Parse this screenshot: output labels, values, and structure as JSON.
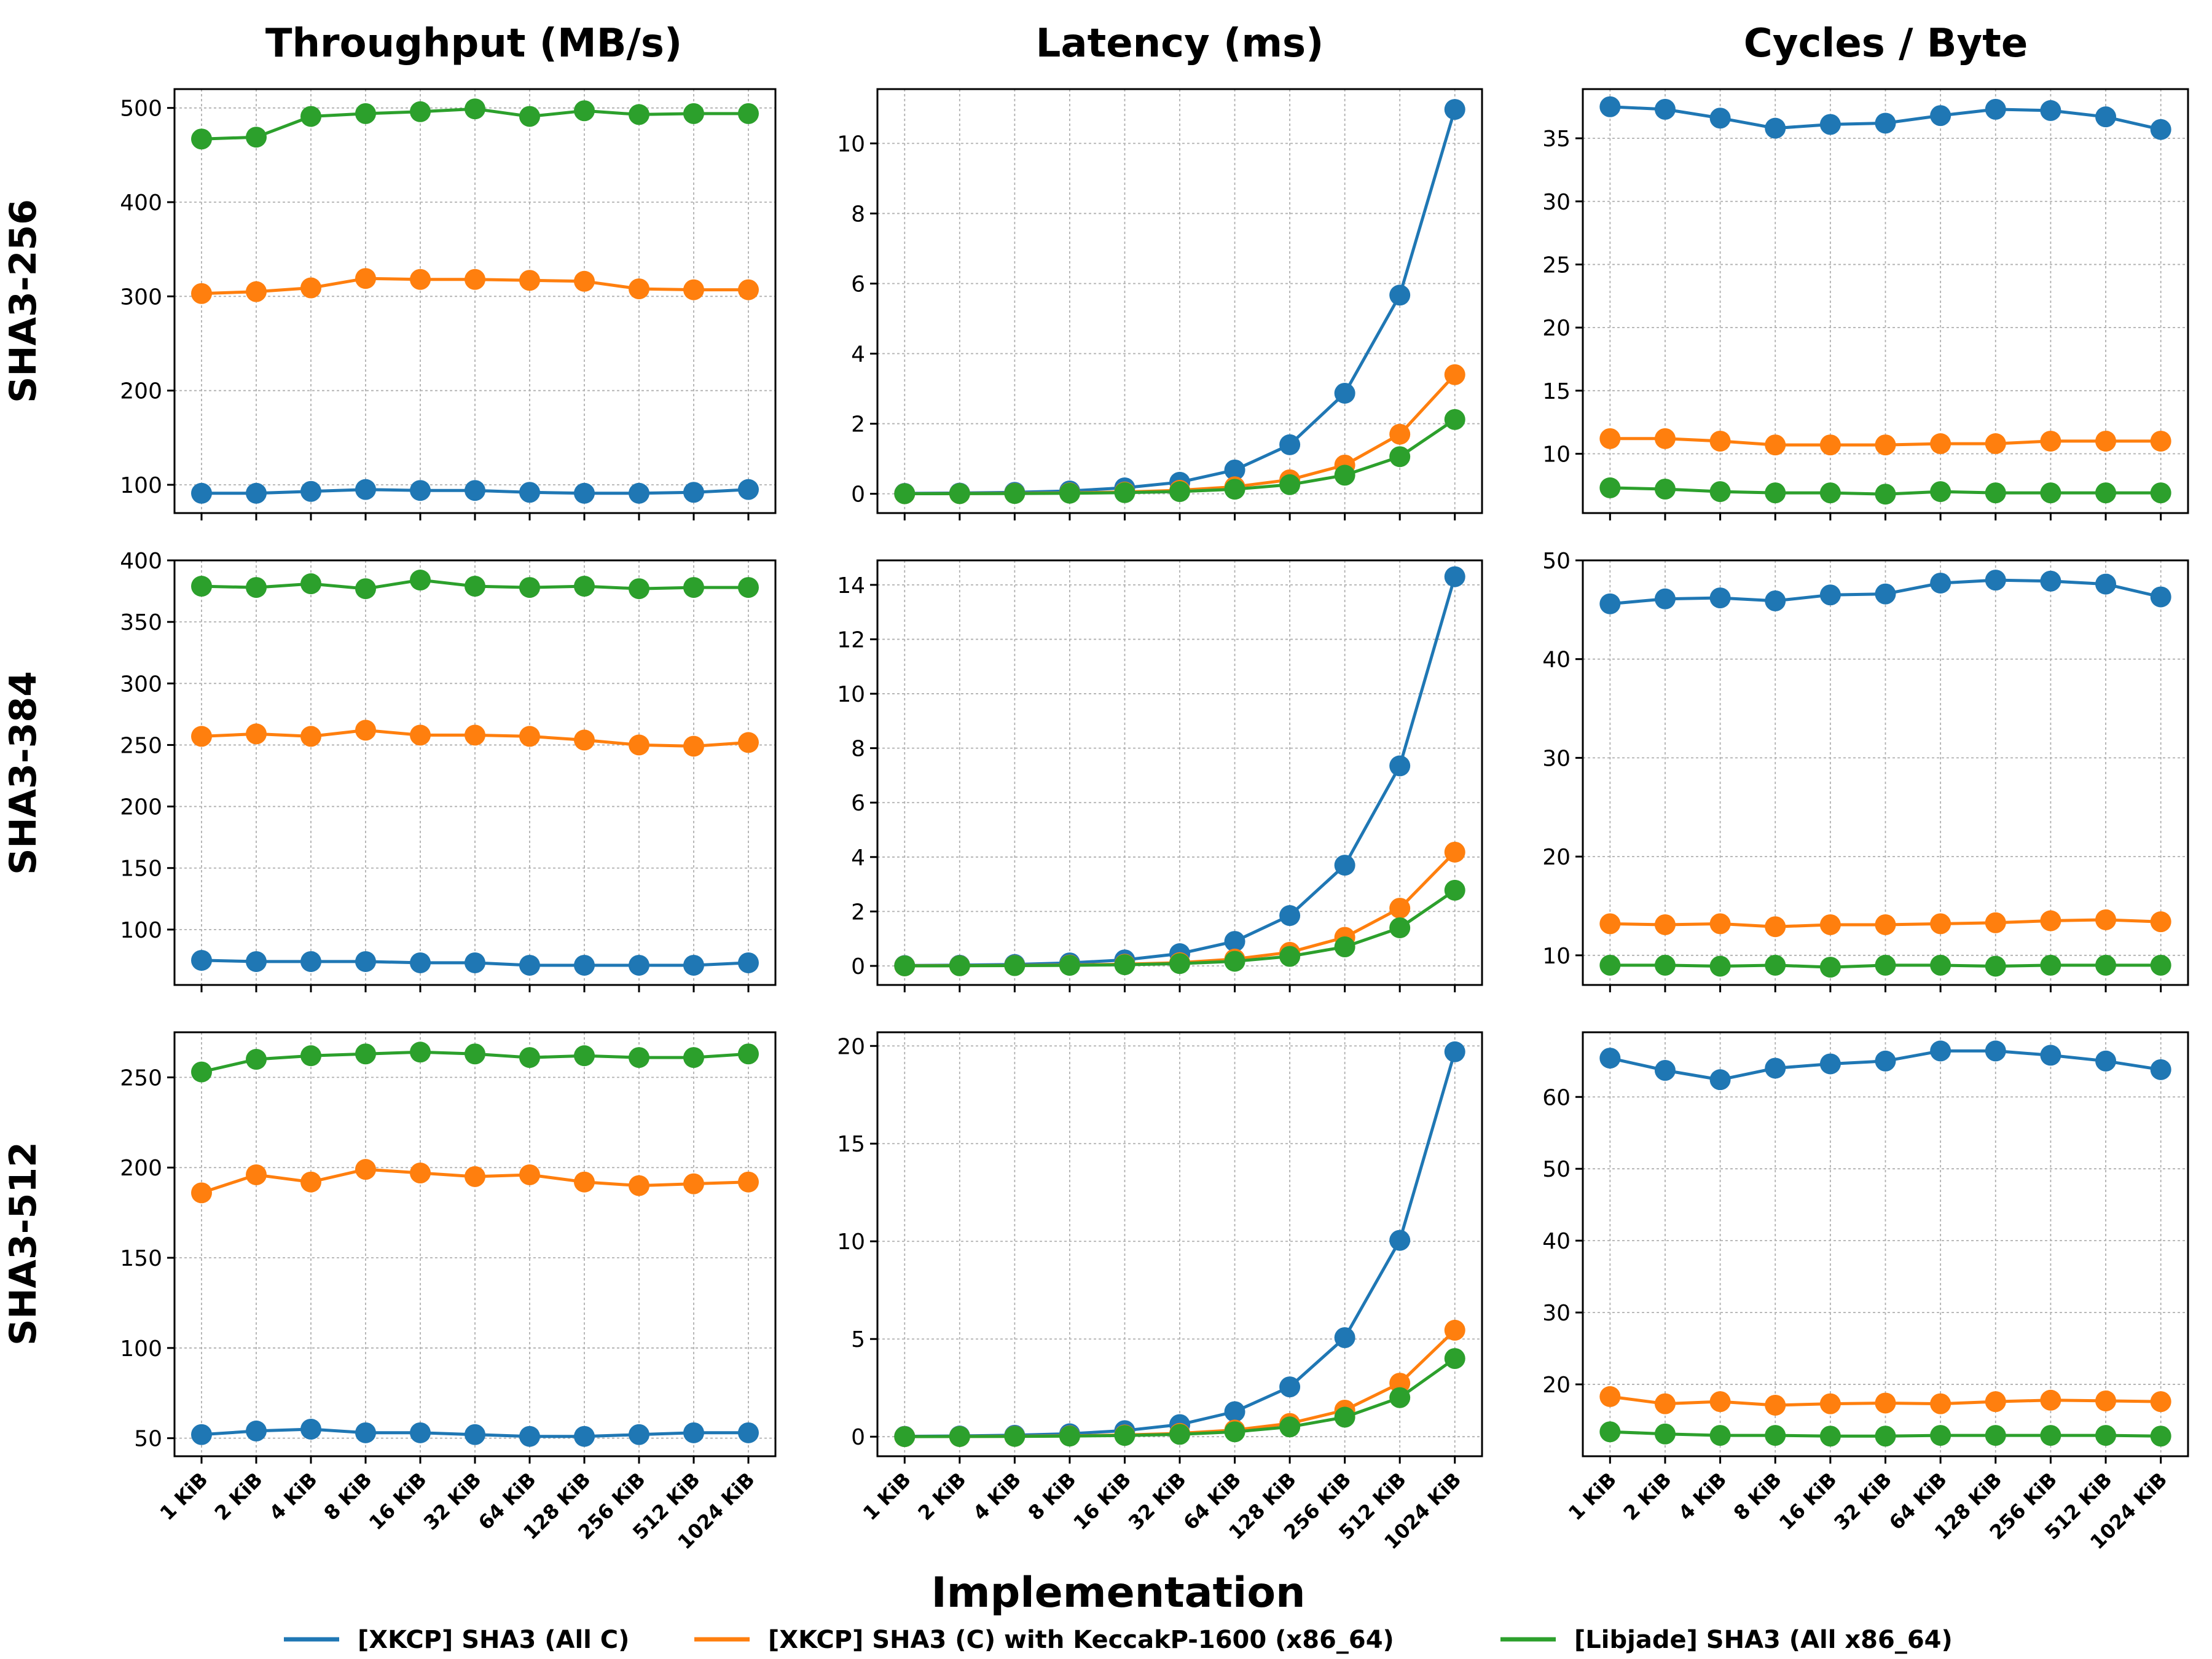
{
  "figure": {
    "xlabel": "Implementation",
    "column_titles": [
      "Throughput (MB/s)",
      "Latency (ms)",
      "Cycles / Byte"
    ],
    "row_labels": [
      "SHA3-256",
      "SHA3-384",
      "SHA3-512"
    ],
    "legend_position": "bottom-center"
  },
  "legend": [
    {
      "label": "[XKCP] SHA3 (All C)",
      "color": "#1f77b4"
    },
    {
      "label": "[XKCP] SHA3 (C) with KeccakP-1600 (x86_64)",
      "color": "#ff7f0e"
    },
    {
      "label": "[Libjade] SHA3 (All x86_64)",
      "color": "#2ca02c"
    }
  ],
  "chart_data": [
    {
      "type": "line",
      "row": "SHA3-256",
      "column": "Throughput (MB/s)",
      "categories": [
        "1 KiB",
        "2 KiB",
        "4 KiB",
        "8 KiB",
        "16 KiB",
        "32 KiB",
        "64 KiB",
        "128 KiB",
        "256 KiB",
        "512 KiB",
        "1024 KiB"
      ],
      "ylim": [
        70,
        520
      ],
      "yticks": [
        100,
        200,
        300,
        400,
        500
      ],
      "grid": true,
      "series": [
        {
          "name": "[XKCP] SHA3 (All C)",
          "values": [
            91,
            91,
            93,
            95,
            94,
            94,
            92,
            91,
            91,
            92,
            95
          ]
        },
        {
          "name": "[XKCP] SHA3 (C) with KeccakP-1600 (x86_64)",
          "values": [
            303,
            305,
            309,
            319,
            318,
            318,
            317,
            316,
            308,
            307,
            307
          ]
        },
        {
          "name": "[Libjade] SHA3 (All x86_64)",
          "values": [
            467,
            469,
            491,
            494,
            496,
            499,
            491,
            497,
            493,
            494,
            494
          ]
        }
      ]
    },
    {
      "type": "line",
      "row": "SHA3-256",
      "column": "Latency (ms)",
      "categories": [
        "1 KiB",
        "2 KiB",
        "4 KiB",
        "8 KiB",
        "16 KiB",
        "32 KiB",
        "64 KiB",
        "128 KiB",
        "256 KiB",
        "512 KiB",
        "1024 KiB"
      ],
      "ylim": [
        -0.55,
        11.55
      ],
      "yticks": [
        0,
        2,
        4,
        6,
        8,
        10
      ],
      "grid": true,
      "series": [
        {
          "name": "[XKCP] SHA3 (All C)",
          "values": [
            0.011,
            0.021,
            0.042,
            0.082,
            0.17,
            0.33,
            0.68,
            1.4,
            2.87,
            5.67,
            10.97
          ]
        },
        {
          "name": "[XKCP] SHA3 (C) with KeccakP-1600 (x86_64)",
          "values": [
            0.003,
            0.006,
            0.013,
            0.026,
            0.05,
            0.1,
            0.2,
            0.4,
            0.82,
            1.7,
            3.4
          ]
        },
        {
          "name": "[Libjade] SHA3 (All x86_64)",
          "values": [
            0.002,
            0.004,
            0.008,
            0.016,
            0.032,
            0.063,
            0.13,
            0.26,
            0.53,
            1.06,
            2.12
          ]
        }
      ]
    },
    {
      "type": "line",
      "row": "SHA3-256",
      "column": "Cycles / Byte",
      "categories": [
        "1 KiB",
        "2 KiB",
        "4 KiB",
        "8 KiB",
        "16 KiB",
        "32 KiB",
        "64 KiB",
        "128 KiB",
        "256 KiB",
        "512 KiB",
        "1024 KiB"
      ],
      "ylim": [
        5.3,
        38.9
      ],
      "yticks": [
        10,
        15,
        20,
        25,
        30,
        35
      ],
      "grid": true,
      "series": [
        {
          "name": "[XKCP] SHA3 (All C)",
          "values": [
            37.5,
            37.3,
            36.6,
            35.8,
            36.1,
            36.2,
            36.8,
            37.3,
            37.2,
            36.7,
            35.7
          ]
        },
        {
          "name": "[XKCP] SHA3 (C) with KeccakP-1600 (x86_64)",
          "values": [
            11.2,
            11.2,
            11.0,
            10.7,
            10.7,
            10.7,
            10.8,
            10.8,
            11.0,
            11.0,
            11.0
          ]
        },
        {
          "name": "[Libjade] SHA3 (All x86_64)",
          "values": [
            7.3,
            7.2,
            7.0,
            6.9,
            6.9,
            6.8,
            7.0,
            6.9,
            6.9,
            6.9,
            6.9
          ]
        }
      ]
    },
    {
      "type": "line",
      "row": "SHA3-384",
      "column": "Throughput (MB/s)",
      "categories": [
        "1 KiB",
        "2 KiB",
        "4 KiB",
        "8 KiB",
        "16 KiB",
        "32 KiB",
        "64 KiB",
        "128 KiB",
        "256 KiB",
        "512 KiB",
        "1024 KiB"
      ],
      "ylim": [
        55,
        400
      ],
      "yticks": [
        100,
        150,
        200,
        250,
        300,
        350,
        400
      ],
      "grid": true,
      "series": [
        {
          "name": "[XKCP] SHA3 (All C)",
          "values": [
            75,
            74,
            74,
            74,
            73,
            73,
            71,
            71,
            71,
            71,
            73
          ]
        },
        {
          "name": "[XKCP] SHA3 (C) with KeccakP-1600 (x86_64)",
          "values": [
            257,
            259,
            257,
            262,
            258,
            258,
            257,
            254,
            250,
            249,
            252
          ]
        },
        {
          "name": "[Libjade] SHA3 (All x86_64)",
          "values": [
            379,
            378,
            381,
            377,
            384,
            379,
            378,
            379,
            377,
            378,
            378
          ]
        }
      ]
    },
    {
      "type": "line",
      "row": "SHA3-384",
      "column": "Latency (ms)",
      "categories": [
        "1 KiB",
        "2 KiB",
        "4 KiB",
        "8 KiB",
        "16 KiB",
        "32 KiB",
        "64 KiB",
        "128 KiB",
        "256 KiB",
        "512 KiB",
        "1024 KiB"
      ],
      "ylim": [
        -0.7,
        14.9
      ],
      "yticks": [
        0,
        2,
        4,
        6,
        8,
        10,
        12,
        14
      ],
      "grid": true,
      "series": [
        {
          "name": "[XKCP] SHA3 (All C)",
          "values": [
            0.013,
            0.026,
            0.053,
            0.11,
            0.22,
            0.45,
            0.9,
            1.85,
            3.7,
            7.35,
            14.3
          ]
        },
        {
          "name": "[XKCP] SHA3 (C) with KeccakP-1600 (x86_64)",
          "values": [
            0.004,
            0.008,
            0.016,
            0.031,
            0.062,
            0.12,
            0.25,
            0.5,
            1.05,
            2.12,
            4.18
          ]
        },
        {
          "name": "[Libjade] SHA3 (All x86_64)",
          "values": [
            0.003,
            0.005,
            0.011,
            0.021,
            0.043,
            0.085,
            0.17,
            0.35,
            0.7,
            1.4,
            2.78
          ]
        }
      ]
    },
    {
      "type": "line",
      "row": "SHA3-384",
      "column": "Cycles / Byte",
      "categories": [
        "1 KiB",
        "2 KiB",
        "4 KiB",
        "8 KiB",
        "16 KiB",
        "32 KiB",
        "64 KiB",
        "128 KiB",
        "256 KiB",
        "512 KiB",
        "1024 KiB"
      ],
      "ylim": [
        7.0,
        50.0
      ],
      "yticks": [
        10,
        20,
        30,
        40,
        50
      ],
      "grid": true,
      "series": [
        {
          "name": "[XKCP] SHA3 (All C)",
          "values": [
            45.6,
            46.1,
            46.2,
            45.9,
            46.5,
            46.6,
            47.7,
            48.0,
            47.9,
            47.6,
            46.3
          ]
        },
        {
          "name": "[XKCP] SHA3 (C) with KeccakP-1600 (x86_64)",
          "values": [
            13.2,
            13.1,
            13.2,
            12.9,
            13.1,
            13.1,
            13.2,
            13.3,
            13.5,
            13.6,
            13.4
          ]
        },
        {
          "name": "[Libjade] SHA3 (All x86_64)",
          "values": [
            9.0,
            9.0,
            8.9,
            9.0,
            8.8,
            9.0,
            9.0,
            8.9,
            9.0,
            9.0,
            9.0
          ]
        }
      ]
    },
    {
      "type": "line",
      "row": "SHA3-512",
      "column": "Throughput (MB/s)",
      "categories": [
        "1 KiB",
        "2 KiB",
        "4 KiB",
        "8 KiB",
        "16 KiB",
        "32 KiB",
        "64 KiB",
        "128 KiB",
        "256 KiB",
        "512 KiB",
        "1024 KiB"
      ],
      "ylim": [
        40,
        275
      ],
      "yticks": [
        50,
        100,
        150,
        200,
        250
      ],
      "grid": true,
      "series": [
        {
          "name": "[XKCP] SHA3 (All C)",
          "values": [
            52,
            54,
            55,
            53,
            53,
            52,
            51,
            51,
            52,
            53,
            53
          ]
        },
        {
          "name": "[XKCP] SHA3 (C) with KeccakP-1600 (x86_64)",
          "values": [
            186,
            196,
            192,
            199,
            197,
            195,
            196,
            192,
            190,
            191,
            192
          ]
        },
        {
          "name": "[Libjade] SHA3 (All x86_64)",
          "values": [
            253,
            260,
            262,
            263,
            264,
            263,
            261,
            262,
            261,
            261,
            263
          ]
        }
      ]
    },
    {
      "type": "line",
      "row": "SHA3-512",
      "column": "Latency (ms)",
      "categories": [
        "1 KiB",
        "2 KiB",
        "4 KiB",
        "8 KiB",
        "16 KiB",
        "32 KiB",
        "64 KiB",
        "128 KiB",
        "256 KiB",
        "512 KiB",
        "1024 KiB"
      ],
      "ylim": [
        -1.0,
        20.7
      ],
      "yticks": [
        0,
        5,
        10,
        15,
        20
      ],
      "grid": true,
      "series": [
        {
          "name": "[XKCP] SHA3 (All C)",
          "values": [
            0.019,
            0.037,
            0.074,
            0.15,
            0.31,
            0.62,
            1.28,
            2.55,
            5.07,
            10.05,
            19.7
          ]
        },
        {
          "name": "[XKCP] SHA3 (C) with KeccakP-1600 (x86_64)",
          "values": [
            0.005,
            0.011,
            0.022,
            0.044,
            0.087,
            0.17,
            0.34,
            0.68,
            1.36,
            2.74,
            5.45
          ]
        },
        {
          "name": "[Libjade] SHA3 (All x86_64)",
          "values": [
            0.004,
            0.008,
            0.015,
            0.031,
            0.062,
            0.12,
            0.25,
            0.5,
            1.0,
            2.0,
            4.0
          ]
        }
      ]
    },
    {
      "type": "line",
      "row": "SHA3-512",
      "column": "Cycles / Byte",
      "categories": [
        "1 KiB",
        "2 KiB",
        "4 KiB",
        "8 KiB",
        "16 KiB",
        "32 KiB",
        "64 KiB",
        "128 KiB",
        "256 KiB",
        "512 KiB",
        "1024 KiB"
      ],
      "ylim": [
        10.0,
        69.0
      ],
      "yticks": [
        20,
        30,
        40,
        50,
        60
      ],
      "grid": true,
      "series": [
        {
          "name": "[XKCP] SHA3 (All C)",
          "values": [
            65.4,
            63.7,
            62.4,
            64.0,
            64.6,
            65.0,
            66.4,
            66.4,
            65.8,
            65.0,
            63.8
          ]
        },
        {
          "name": "[XKCP] SHA3 (C) with KeccakP-1600 (x86_64)",
          "values": [
            18.3,
            17.3,
            17.6,
            17.1,
            17.3,
            17.4,
            17.3,
            17.6,
            17.8,
            17.7,
            17.6
          ]
        },
        {
          "name": "[Libjade] SHA3 (All x86_64)",
          "values": [
            13.4,
            13.1,
            12.9,
            12.9,
            12.8,
            12.8,
            12.9,
            12.9,
            12.9,
            12.9,
            12.8
          ]
        }
      ]
    }
  ]
}
